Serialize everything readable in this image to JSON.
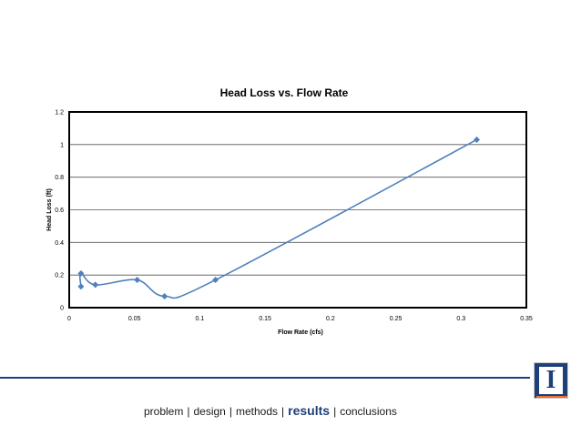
{
  "chart_data": {
    "type": "scatter",
    "smooth": true,
    "title": "Head Loss vs. Flow Rate",
    "xlabel": "Flow Rate (cfs)",
    "ylabel": "Head Loss (ft)",
    "xlim": [
      0,
      0.35
    ],
    "ylim": [
      0,
      1.2
    ],
    "x_ticks": [
      "0",
      "0.05",
      "0.1",
      "0.15",
      "0.2",
      "0.25",
      "0.3",
      "0.35"
    ],
    "y_ticks": [
      "0",
      "0.2",
      "0.4",
      "0.6",
      "0.8",
      "1",
      "1.2"
    ],
    "grid": "horizontal",
    "series": [
      {
        "name": "Head Loss",
        "color": "#4f81bd",
        "x": [
          0.009,
          0.009,
          0.02,
          0.052,
          0.073,
          0.112,
          0.312
        ],
        "y": [
          0.13,
          0.21,
          0.14,
          0.17,
          0.07,
          0.17,
          1.03
        ]
      }
    ]
  },
  "footer": {
    "nav": [
      "problem",
      "design",
      "methods",
      "results",
      "conclusions"
    ],
    "active": "results",
    "separator": "|",
    "logo_letter": "I",
    "brand_color": "#1f3f7a",
    "accent_color": "#e8702a"
  }
}
